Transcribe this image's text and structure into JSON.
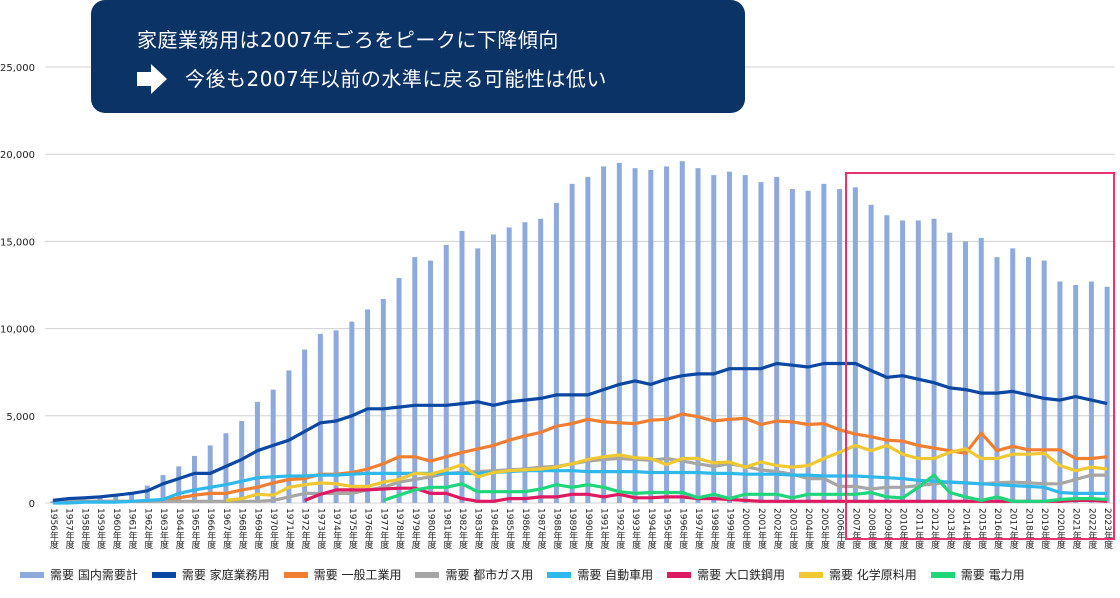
{
  "callout": {
    "line1": "家庭業務用は2007年ごろをピークに下降傾向",
    "line2": "今後も2007年以前の水準に戻る可能性は低い",
    "arrow_icon": "right-arrow-icon",
    "background": "#0b3366"
  },
  "highlight": {
    "from": "2007年度",
    "to": "2023年度",
    "color": "#e8336e"
  },
  "chart_data": {
    "type": "bar+line",
    "title": "",
    "xlabel": "",
    "ylabel": "",
    "ylim": [
      0,
      25000
    ],
    "yticks": [
      0,
      5000,
      10000,
      15000,
      20000,
      25000
    ],
    "ytick_labels": [
      "0",
      "5,000",
      "10,000",
      "15,000",
      "20,000",
      "25,000"
    ],
    "grid": true,
    "legend_position": "bottom",
    "categories": [
      "1956年度",
      "1957年度",
      "1958年度",
      "1959年度",
      "1960年度",
      "1961年度",
      "1962年度",
      "1963年度",
      "1964年度",
      "1965年度",
      "1966年度",
      "1967年度",
      "1968年度",
      "1969年度",
      "1970年度",
      "1971年度",
      "1972年度",
      "1973年度",
      "1974年度",
      "1975年度",
      "1976年度",
      "1977年度",
      "1978年度",
      "1979年度",
      "1980年度",
      "1981年度",
      "1982年度",
      "1983年度",
      "1984年度",
      "1985年度",
      "1986年度",
      "1987年度",
      "1988年度",
      "1989年度",
      "1990年度",
      "1991年度",
      "1992年度",
      "1993年度",
      "1994年度",
      "1995年度",
      "1996年度",
      "1997年度",
      "1998年度",
      "1999年度",
      "2000年度",
      "2001年度",
      "2002年度",
      "2003年度",
      "2004年度",
      "2005年度",
      "2006年度",
      "2007年度",
      "2008年度",
      "2009年度",
      "2010年度",
      "2011年度",
      "2012年度",
      "2013年度",
      "2014年度",
      "2015年度",
      "2016年度",
      "2017年度",
      "2018年度",
      "2019年度",
      "2020年度",
      "2021年度",
      "2022年度",
      "2023年度"
    ],
    "series": [
      {
        "name": "需要 国内需要計",
        "kind": "bar",
        "color": "#8eaadc",
        "values": [
          100,
          150,
          200,
          300,
          400,
          600,
          1000,
          1600,
          2100,
          2700,
          3300,
          4000,
          4700,
          5800,
          6500,
          7600,
          8800,
          9700,
          9900,
          10400,
          11100,
          11700,
          12900,
          14100,
          13900,
          14800,
          15600,
          14600,
          15400,
          15800,
          16100,
          16300,
          17200,
          18300,
          18700,
          19300,
          19500,
          19200,
          19100,
          19300,
          19600,
          19200,
          18800,
          19000,
          18800,
          18400,
          18700,
          18000,
          17900,
          18300,
          18000,
          18100,
          17100,
          16500,
          16200,
          16200,
          16300,
          15500,
          15000,
          15200,
          14100,
          14600,
          14100,
          13900,
          12700,
          12500,
          12700,
          12400
        ]
      },
      {
        "name": "需要 家庭業務用",
        "kind": "line",
        "color": "#0b47a3",
        "values": [
          150,
          250,
          300,
          350,
          450,
          550,
          700,
          1100,
          1400,
          1700,
          1700,
          2100,
          2500,
          3000,
          3300,
          3600,
          4100,
          4600,
          4700,
          5000,
          5400,
          5400,
          5500,
          5600,
          5600,
          5600,
          5700,
          5800,
          5600,
          5800,
          5900,
          6000,
          6200,
          6200,
          6200,
          6500,
          6800,
          7000,
          6800,
          7100,
          7300,
          7400,
          7400,
          7700,
          7700,
          7700,
          8000,
          7900,
          7800,
          8000,
          8000,
          8000,
          7600,
          7200,
          7300,
          7100,
          6900,
          6600,
          6500,
          6300,
          6300,
          6400,
          6200,
          6000,
          5900,
          6100,
          5900,
          5700
        ]
      },
      {
        "name": "需要 一般工業用",
        "kind": "line",
        "color": "#f07f31",
        "values": [
          100,
          100,
          100,
          100,
          100,
          100,
          100,
          150,
          300,
          450,
          550,
          550,
          750,
          900,
          1150,
          1350,
          1400,
          1650,
          1650,
          1750,
          1950,
          2250,
          2650,
          2650,
          2400,
          2650,
          2900,
          3100,
          3300,
          3600,
          3850,
          4050,
          4400,
          4550,
          4800,
          4650,
          4600,
          4550,
          4750,
          4800,
          5100,
          4950,
          4700,
          4800,
          4850,
          4500,
          4700,
          4650,
          4500,
          4550,
          4200,
          3950,
          3800,
          3600,
          3550,
          3300,
          3150,
          3000,
          2850,
          4000,
          3000,
          3250,
          3050,
          3050,
          3050,
          2550,
          2550,
          2650
        ]
      },
      {
        "name": "需要 都市ガス用",
        "kind": "line",
        "color": "#a6a6a6",
        "values": [
          100,
          100,
          100,
          100,
          100,
          100,
          100,
          100,
          100,
          100,
          100,
          100,
          100,
          100,
          150,
          350,
          550,
          550,
          550,
          550,
          750,
          900,
          1200,
          1350,
          1500,
          1700,
          1750,
          1800,
          1850,
          1900,
          1950,
          2050,
          2100,
          2250,
          2400,
          2500,
          2550,
          2500,
          2450,
          2550,
          2400,
          2250,
          2100,
          2250,
          2100,
          1900,
          1800,
          1650,
          1400,
          1400,
          950,
          950,
          800,
          900,
          900,
          1000,
          1100,
          1200,
          1150,
          1100,
          1150,
          1200,
          1150,
          1100,
          1100,
          1350,
          1600,
          1600
        ]
      },
      {
        "name": "需要 自動車用",
        "kind": "line",
        "color": "#2fb8ec",
        "values": [
          0,
          0,
          50,
          50,
          50,
          100,
          150,
          200,
          550,
          750,
          900,
          1050,
          1250,
          1450,
          1500,
          1550,
          1550,
          1600,
          1600,
          1650,
          1700,
          1700,
          1700,
          1700,
          1700,
          1700,
          1700,
          1700,
          1750,
          1800,
          1850,
          1850,
          1850,
          1850,
          1800,
          1800,
          1800,
          1800,
          1750,
          1750,
          1750,
          1750,
          1700,
          1700,
          1650,
          1650,
          1650,
          1600,
          1600,
          1550,
          1550,
          1550,
          1500,
          1450,
          1400,
          1300,
          1250,
          1200,
          1150,
          1100,
          1050,
          1000,
          950,
          900,
          600,
          550,
          550,
          550
        ]
      },
      {
        "name": "需要 大口鉄鋼用",
        "kind": "line",
        "color": "#e01a62",
        "values": [
          null,
          null,
          null,
          null,
          null,
          null,
          null,
          null,
          null,
          null,
          null,
          null,
          null,
          null,
          null,
          null,
          150,
          500,
          750,
          750,
          750,
          800,
          850,
          850,
          550,
          550,
          250,
          100,
          100,
          250,
          250,
          350,
          350,
          500,
          500,
          350,
          500,
          300,
          300,
          350,
          350,
          250,
          250,
          200,
          150,
          100,
          100,
          100,
          100,
          100,
          100,
          100,
          100,
          100,
          100,
          100,
          100,
          100,
          100,
          100,
          100,
          100,
          100,
          100,
          100,
          150,
          150,
          100
        ]
      },
      {
        "name": "需要 化学原料用",
        "kind": "line",
        "color": "#f0c832",
        "values": [
          null,
          null,
          null,
          null,
          null,
          null,
          null,
          null,
          null,
          null,
          null,
          150,
          250,
          500,
          450,
          900,
          1050,
          1150,
          1100,
          950,
          950,
          1200,
          1350,
          1700,
          1650,
          1900,
          2200,
          1500,
          1750,
          1850,
          1900,
          1950,
          2050,
          2250,
          2500,
          2650,
          2750,
          2600,
          2550,
          2200,
          2550,
          2550,
          2300,
          2350,
          2050,
          2350,
          2150,
          2050,
          2150,
          2550,
          2900,
          3300,
          3000,
          3300,
          2800,
          2550,
          2550,
          2900,
          3100,
          2550,
          2550,
          2800,
          2800,
          2850,
          2150,
          1850,
          2050,
          1950
        ]
      },
      {
        "name": "需要 電力用",
        "kind": "line",
        "color": "#1fd67b",
        "values": [
          null,
          null,
          null,
          null,
          null,
          null,
          null,
          null,
          null,
          null,
          null,
          null,
          null,
          null,
          null,
          null,
          null,
          null,
          null,
          null,
          null,
          150,
          450,
          750,
          900,
          900,
          1100,
          650,
          650,
          650,
          650,
          800,
          1050,
          900,
          1050,
          900,
          650,
          550,
          600,
          600,
          600,
          300,
          500,
          250,
          500,
          500,
          500,
          300,
          500,
          500,
          500,
          500,
          600,
          350,
          300,
          900,
          1600,
          600,
          350,
          150,
          350,
          100,
          100,
          100,
          200,
          250,
          250,
          200
        ]
      }
    ]
  }
}
